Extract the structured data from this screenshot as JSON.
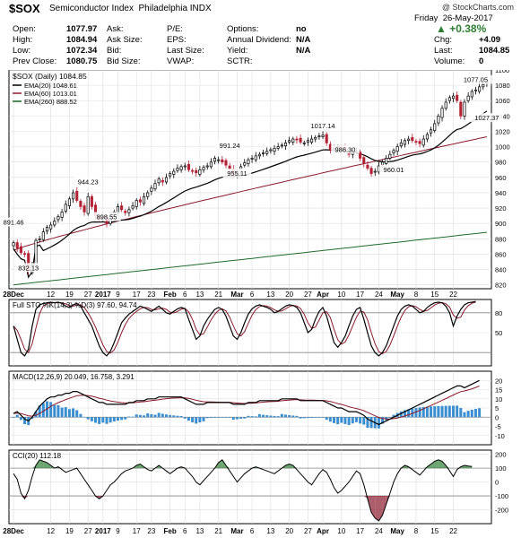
{
  "header": {
    "symbol": "$SOX",
    "name": "Semiconductor Index",
    "exchange": "Philadelphia INDX",
    "copyright": "@ StockCharts.com",
    "date_day": "Friday",
    "date": "26-May-2017",
    "change_pct": "+0.38%",
    "quote_left": [
      {
        "label": "Open:",
        "value": "1077.97"
      },
      {
        "label": "High:",
        "value": "1084.94"
      },
      {
        "label": "Low:",
        "value": "1072.34"
      },
      {
        "label": "Prev Close:",
        "value": "1080.75"
      }
    ],
    "quote_mid1": [
      {
        "label": "Ask:",
        "value": ""
      },
      {
        "label": "Ask Size:",
        "value": ""
      },
      {
        "label": "Bid:",
        "value": ""
      },
      {
        "label": "Bid Size:",
        "value": ""
      }
    ],
    "quote_mid2": [
      {
        "label": "P/E:",
        "value": ""
      },
      {
        "label": "EPS:",
        "value": ""
      },
      {
        "label": "Last Size:",
        "value": ""
      },
      {
        "label": "VWAP:",
        "value": ""
      }
    ],
    "quote_mid3": [
      {
        "label": "Options:",
        "value": "no"
      },
      {
        "label": "Annual Dividend:",
        "value": "N/A"
      },
      {
        "label": "Yield:",
        "value": "N/A"
      },
      {
        "label": "SCTR:",
        "value": ""
      }
    ],
    "quote_right": [
      {
        "label": "Chg:",
        "value": "+4.09"
      },
      {
        "label": "Last:",
        "value": "1084.85"
      },
      {
        "label": "Volume:",
        "value": "0"
      }
    ]
  },
  "colors": {
    "up": "#000000",
    "down": "#b22234",
    "ema20": "#000000",
    "ema60": "#8b1a2b",
    "ema260": "#1e6b2a",
    "macd_hist": "#3b8fd0",
    "cci_pos": "#2e7d32",
    "cci_neg": "#8b1a2b",
    "positive": "#2e7d32"
  },
  "chart_data": {
    "type": "candlestick",
    "x_labels": [
      "28Dec",
      "12",
      "19",
      "27",
      "2017",
      "9",
      "17",
      "23",
      "Feb",
      "6",
      "13",
      "21",
      "Mar",
      "6",
      "13",
      "20",
      "27",
      "Apr",
      "10",
      "17",
      "24",
      "May",
      "8",
      "15",
      "22"
    ],
    "price": {
      "legend": "$SOX (Daily) 1084.85",
      "ylim": [
        815,
        1100
      ],
      "ticks": [
        820,
        840,
        860,
        880,
        900,
        920,
        940,
        960,
        980,
        1000,
        1020,
        1040,
        1060,
        1080,
        1100
      ],
      "ema_legend": [
        {
          "name": "EMA(20) 1048.61",
          "color_key": "ema20"
        },
        {
          "name": "EMA(60) 1013.01",
          "color_key": "ema60"
        },
        {
          "name": "EMA(260) 888.52",
          "color_key": "ema260"
        }
      ],
      "annotations": [
        {
          "label": "891.46",
          "value": 891.46,
          "bar": 0
        },
        {
          "label": "832.13",
          "value": 832.13,
          "bar": 4
        },
        {
          "label": "944.23",
          "value": 944.23,
          "bar": 20
        },
        {
          "label": "898.55",
          "value": 898.55,
          "bar": 25
        },
        {
          "label": "991.24",
          "value": 991.24,
          "bar": 58
        },
        {
          "label": "955.11",
          "value": 955.11,
          "bar": 60
        },
        {
          "label": "1017.14",
          "value": 1017.14,
          "bar": 83
        },
        {
          "label": "986.30",
          "value": 986.3,
          "bar": 89
        },
        {
          "label": "960.01",
          "value": 960.01,
          "bar": 102
        },
        {
          "label": "1077.05",
          "value": 1077.05,
          "bar": 124
        },
        {
          "label": "1027.37",
          "value": 1027.37,
          "bar": 127
        }
      ],
      "close": [
        875,
        868,
        862,
        860,
        838,
        845,
        878,
        880,
        889,
        895,
        898,
        903,
        909,
        915,
        925,
        932,
        940,
        930,
        922,
        915,
        935,
        922,
        910,
        905,
        912,
        900,
        910,
        915,
        922,
        918,
        914,
        918,
        923,
        930,
        928,
        935,
        940,
        946,
        952,
        958,
        954,
        960,
        965,
        968,
        972,
        974,
        975,
        970,
        968,
        966,
        970,
        973,
        975,
        980,
        985,
        983,
        980,
        976,
        970,
        965,
        968,
        974,
        979,
        983,
        985,
        988,
        990,
        992,
        994,
        996,
        998,
        1000,
        1002,
        1005,
        1008,
        1010,
        1009,
        1006,
        1005,
        1008,
        1010,
        1012,
        1014,
        1015,
        1005,
        996,
        998,
        1000,
        998,
        996,
        990,
        992,
        994,
        985,
        978,
        972,
        965,
        968,
        975,
        980,
        985,
        990,
        995,
        1000,
        1005,
        1008,
        1010,
        1008,
        1006,
        1004,
        1010,
        1016,
        1022,
        1030,
        1040,
        1050,
        1058,
        1064,
        1066,
        1060,
        1040,
        1058,
        1066,
        1072,
        1074,
        1078,
        1081,
        1085
      ]
    },
    "stoch": {
      "legend": "Full STO %K(14,3) %D(3) 97.60, 94.74",
      "ylim": [
        0,
        100
      ],
      "ticks": [
        50,
        80
      ],
      "k": [
        60,
        40,
        20,
        15,
        25,
        60,
        85,
        92,
        94,
        95,
        96,
        95,
        96,
        94,
        90,
        88,
        92,
        94,
        90,
        80,
        70,
        60,
        45,
        30,
        20,
        15,
        22,
        35,
        50,
        65,
        72,
        78,
        82,
        86,
        90,
        88,
        85,
        82,
        86,
        90,
        85,
        80,
        78,
        82,
        86,
        88,
        86,
        70,
        55,
        40,
        45,
        60,
        70,
        78,
        85,
        88,
        85,
        75,
        60,
        45,
        40,
        50,
        65,
        78,
        86,
        90,
        92,
        90,
        88,
        85,
        80,
        82,
        86,
        90,
        92,
        91,
        88,
        80,
        65,
        50,
        55,
        70,
        82,
        88,
        75,
        55,
        35,
        28,
        35,
        45,
        60,
        75,
        85,
        88,
        70,
        50,
        30,
        20,
        15,
        20,
        30,
        45,
        60,
        75,
        85,
        90,
        92,
        90,
        85,
        80,
        82,
        88,
        92,
        95,
        96,
        95,
        90,
        80,
        60,
        75,
        85,
        92,
        95,
        96,
        97
      ]
    },
    "macd": {
      "legend": "MACD(12,26,9) 20.049, 16.758, 3.291",
      "ylim": [
        -15,
        25
      ],
      "ticks": [
        -10,
        -5,
        0,
        5,
        10,
        15,
        20
      ],
      "macd": [
        2,
        3,
        1,
        -1,
        -2,
        0,
        3,
        6,
        8,
        10,
        11,
        11,
        12,
        12,
        13,
        13,
        14,
        14,
        13,
        12,
        11,
        10,
        9,
        8,
        8,
        7,
        7,
        7,
        7,
        7,
        7,
        8,
        8,
        9,
        9,
        9,
        10,
        10,
        10,
        11,
        11,
        11,
        11,
        11,
        11,
        11,
        10,
        9,
        8,
        7,
        7,
        7,
        8,
        8,
        8,
        8,
        8,
        8,
        8,
        7,
        7,
        7,
        7,
        8,
        8,
        8,
        9,
        9,
        9,
        9,
        9,
        9,
        10,
        10,
        10,
        10,
        10,
        9,
        9,
        9,
        9,
        9,
        9,
        9,
        8,
        7,
        6,
        5,
        5,
        4,
        3,
        3,
        3,
        2,
        1,
        -1,
        -2,
        -3,
        -4,
        -3,
        -2,
        -1,
        0,
        1,
        2,
        3,
        4,
        5,
        6,
        7,
        8,
        9,
        10,
        11,
        12,
        13,
        14,
        15,
        16,
        17,
        17,
        16,
        17,
        18,
        19,
        20
      ]
    },
    "cci": {
      "legend": "CCI(20) 112.18",
      "ylim": [
        -300,
        230
      ],
      "ticks": [
        -200,
        -100,
        0,
        100,
        200
      ],
      "values": [
        60,
        20,
        -80,
        -120,
        -60,
        40,
        120,
        160,
        150,
        140,
        120,
        100,
        110,
        90,
        70,
        80,
        90,
        100,
        60,
        20,
        -20,
        -60,
        -100,
        -120,
        -100,
        -60,
        -20,
        0,
        30,
        60,
        80,
        90,
        100,
        120,
        130,
        110,
        90,
        80,
        100,
        120,
        100,
        80,
        60,
        80,
        100,
        110,
        100,
        70,
        40,
        0,
        -20,
        10,
        40,
        70,
        100,
        140,
        160,
        120,
        80,
        40,
        0,
        30,
        60,
        80,
        100,
        110,
        100,
        90,
        80,
        70,
        60,
        80,
        100,
        120,
        130,
        120,
        90,
        60,
        30,
        0,
        -20,
        20,
        60,
        90,
        70,
        20,
        -40,
        -80,
        -60,
        -30,
        0,
        40,
        80,
        60,
        -20,
        -120,
        -220,
        -260,
        -280,
        -240,
        -160,
        -80,
        0,
        60,
        100,
        120,
        110,
        90,
        70,
        50,
        80,
        110,
        130,
        150,
        160,
        150,
        120,
        80,
        40,
        90,
        110,
        120,
        115,
        112
      ]
    }
  }
}
